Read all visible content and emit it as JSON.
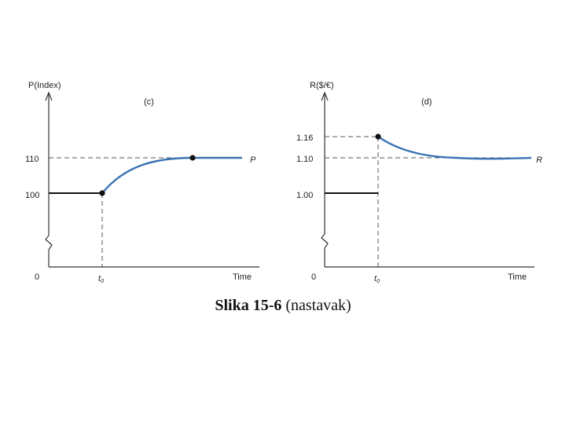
{
  "caption": {
    "bold": "Slika 15-6",
    "rest": "(nastavak)"
  },
  "colors": {
    "curve": "#3a73b5",
    "axis": "#333333",
    "dash": "#555555",
    "dot": "#111111"
  },
  "chart_data": [
    {
      "type": "line",
      "panel": "(c)",
      "ylabel": "P(Index)",
      "xlabel": "Time",
      "origin_label": "0",
      "t0_label": "t",
      "t0_subscript": "0",
      "yticks": [
        "100",
        "110"
      ],
      "series_label": "P",
      "before_level": 100,
      "after_level": 110,
      "jump_value": 100,
      "path": "rises gradually from 100 at t0 and levels off at 110"
    },
    {
      "type": "line",
      "panel": "(d)",
      "ylabel": "R($/€)",
      "xlabel": "Time",
      "origin_label": "0",
      "t0_label": "t",
      "t0_subscript": "0",
      "yticks": [
        "1.00",
        "1.10",
        "1.16"
      ],
      "series_label": "R",
      "before_level": 1.0,
      "after_level": 1.1,
      "jump_value": 1.16,
      "path": "jumps to 1.16 at t0 then declines toward 1.10"
    }
  ]
}
